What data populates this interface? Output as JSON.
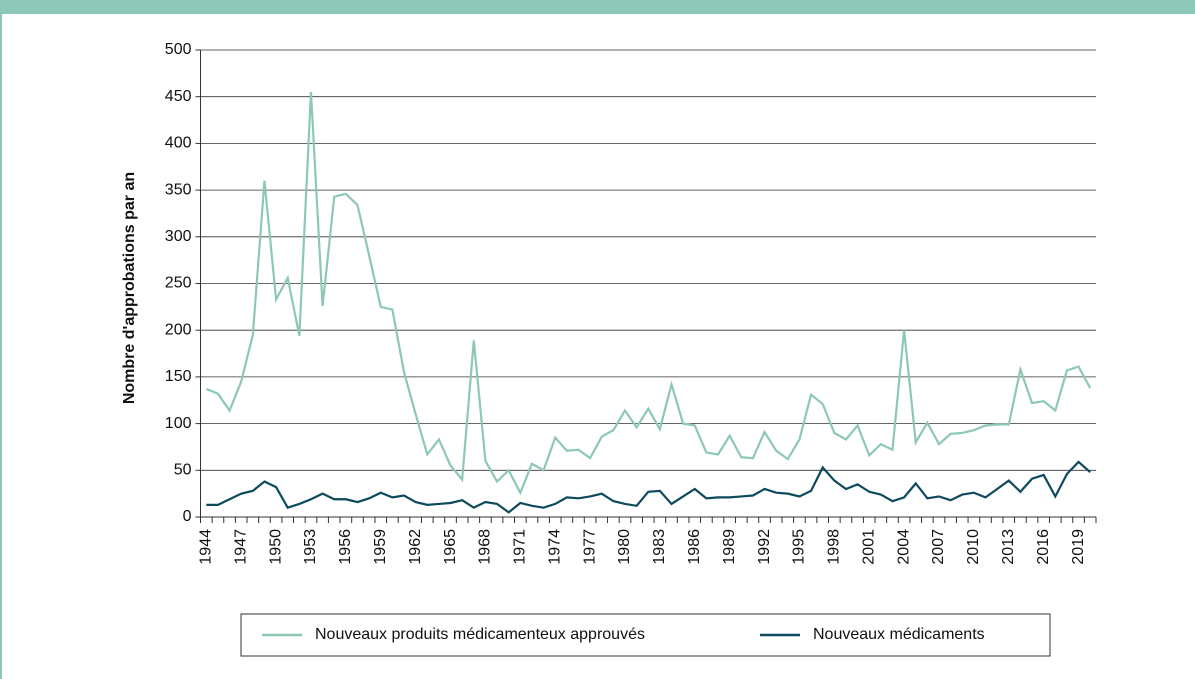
{
  "chart_data": {
    "type": "line",
    "y_label": "Nombre d'approbations par an",
    "categories": [
      "1944",
      null,
      null,
      "1947",
      null,
      null,
      "1950",
      null,
      null,
      "1953",
      null,
      null,
      "1956",
      null,
      null,
      "1959",
      null,
      null,
      "1962",
      null,
      null,
      "1965",
      null,
      null,
      "1968",
      null,
      null,
      "1971",
      null,
      null,
      "1974",
      null,
      null,
      "1977",
      null,
      null,
      "1980",
      null,
      null,
      "1983",
      null,
      null,
      "1986",
      null,
      null,
      "1989",
      null,
      null,
      "1992",
      null,
      null,
      "1995",
      null,
      null,
      "1998",
      null,
      null,
      "2001",
      null,
      null,
      "2004",
      null,
      null,
      "2007",
      null,
      null,
      "2010",
      null,
      null,
      "2013",
      null,
      null,
      "2016",
      null,
      null,
      "2019",
      null
    ],
    "series": [
      {
        "name": "Nouveaux produits médicamenteux approuvés",
        "color": "#8cc7b8",
        "values": [
          137,
          132,
          114,
          145,
          195,
          360,
          233,
          256,
          194,
          455,
          226,
          343,
          346,
          334,
          280,
          225,
          222,
          155,
          110,
          67,
          83,
          55,
          40,
          189,
          60,
          38,
          50,
          26,
          57,
          50,
          85,
          71,
          72,
          63,
          86,
          93,
          114,
          96,
          116,
          94,
          142,
          100,
          98,
          69,
          67,
          87,
          64,
          63,
          91,
          71,
          62,
          83,
          131,
          121,
          90,
          83,
          98,
          66,
          78,
          72,
          200,
          80,
          101,
          78,
          89,
          90,
          93,
          98,
          99,
          99,
          158,
          122,
          124,
          114,
          157,
          161,
          138
        ]
      },
      {
        "name": "Nouveaux médicaments",
        "color": "#0e4a5e",
        "values": [
          13,
          13,
          19,
          25,
          28,
          38,
          32,
          10,
          14,
          19,
          25,
          19,
          19,
          16,
          20,
          26,
          21,
          23,
          16,
          13,
          14,
          15,
          18,
          10,
          16,
          14,
          5,
          15,
          12,
          10,
          14,
          21,
          20,
          22,
          25,
          17,
          14,
          12,
          27,
          28,
          14,
          22,
          30,
          20,
          21,
          21,
          22,
          23,
          30,
          26,
          25,
          22,
          28,
          53,
          39,
          30,
          35,
          27,
          24,
          17,
          21,
          36,
          20,
          22,
          18,
          24,
          26,
          21,
          30,
          39,
          27,
          41,
          45,
          22,
          46,
          59,
          48
        ]
      }
    ],
    "ylim": [
      0,
      500
    ],
    "yticks": [
      0,
      50,
      100,
      150,
      200,
      250,
      300,
      350,
      400,
      450,
      500
    ],
    "grid": true,
    "legend": "bottom"
  }
}
